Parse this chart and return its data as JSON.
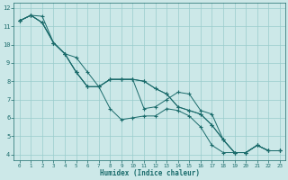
{
  "xlabel": "Humidex (Indice chaleur)",
  "xlim": [
    -0.5,
    23.5
  ],
  "ylim": [
    3.7,
    12.3
  ],
  "xticks": [
    0,
    1,
    2,
    3,
    4,
    5,
    6,
    7,
    8,
    9,
    10,
    11,
    12,
    13,
    14,
    15,
    16,
    17,
    18,
    19,
    20,
    21,
    22,
    23
  ],
  "yticks": [
    4,
    5,
    6,
    7,
    8,
    9,
    10,
    11,
    12
  ],
  "background_color": "#cce8e8",
  "grid_color": "#99cccc",
  "line_color": "#1a6b6b",
  "lines": [
    {
      "x": [
        0,
        1,
        2,
        3,
        4,
        5,
        6,
        7,
        8,
        9,
        10,
        11,
        12,
        13,
        14,
        15,
        16,
        17,
        18,
        19,
        20,
        21,
        22,
        23
      ],
      "y": [
        11.3,
        11.6,
        11.2,
        10.1,
        9.5,
        8.5,
        7.7,
        7.7,
        6.5,
        5.9,
        6.0,
        6.1,
        6.1,
        6.5,
        6.4,
        6.1,
        5.5,
        4.5,
        4.1,
        4.1,
        4.1,
        4.5,
        4.2,
        4.2
      ]
    },
    {
      "x": [
        0,
        1,
        2,
        3,
        4,
        5,
        6,
        7,
        8,
        9,
        10,
        11,
        12,
        13,
        14,
        15,
        16,
        17,
        18,
        19,
        20,
        21,
        22,
        23
      ],
      "y": [
        11.3,
        11.6,
        11.2,
        10.1,
        9.5,
        8.5,
        7.7,
        7.7,
        8.1,
        8.1,
        8.1,
        8.0,
        7.6,
        7.3,
        6.6,
        6.4,
        6.2,
        5.6,
        4.8,
        4.1,
        4.1,
        4.5,
        4.2,
        4.2
      ]
    },
    {
      "x": [
        0,
        1,
        2,
        3,
        4,
        5,
        6,
        7,
        8,
        9,
        10,
        11,
        12,
        13,
        14,
        15,
        16,
        17,
        18,
        19,
        20,
        21,
        22,
        23
      ],
      "y": [
        11.3,
        11.6,
        11.2,
        10.1,
        9.5,
        8.5,
        7.7,
        7.7,
        8.1,
        8.1,
        8.1,
        8.0,
        7.6,
        7.3,
        6.6,
        6.4,
        6.2,
        5.6,
        4.8,
        4.1,
        4.1,
        4.5,
        4.2,
        4.2
      ]
    },
    {
      "x": [
        0,
        1,
        2,
        3,
        4,
        5,
        6,
        7,
        8,
        9,
        10,
        11,
        12,
        13,
        14,
        15,
        16,
        17,
        18,
        19,
        20,
        21,
        22,
        23
      ],
      "y": [
        11.3,
        11.6,
        11.55,
        10.1,
        9.5,
        9.3,
        8.5,
        7.7,
        8.1,
        8.1,
        8.1,
        6.5,
        6.6,
        7.0,
        7.4,
        7.3,
        6.4,
        6.2,
        4.8,
        4.1,
        4.1,
        4.5,
        4.2,
        4.2
      ]
    }
  ]
}
